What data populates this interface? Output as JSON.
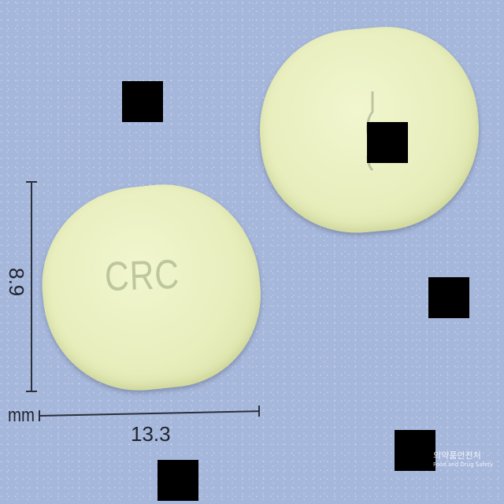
{
  "pill": {
    "front_imprint": "CRC",
    "color": "#e8eebd"
  },
  "dimensions": {
    "height": "8.9",
    "width": "13.3",
    "unit": "mm"
  },
  "watermark": {
    "main": "의약품안전처",
    "sub": "Food and Drug Safety"
  },
  "background_color": "#a6b7dc"
}
